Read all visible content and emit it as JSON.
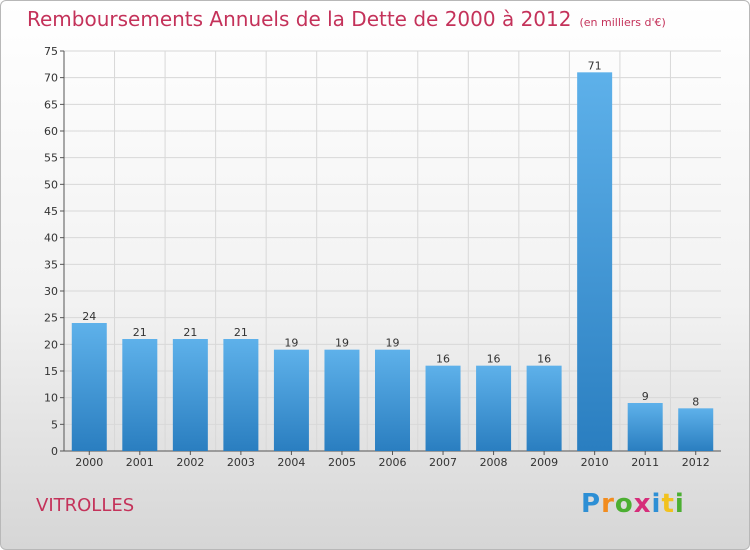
{
  "header": {
    "title": "Remboursements Annuels de la Dette de 2000 à 2012",
    "subtitle": "(en milliers d'€)"
  },
  "footer": {
    "city": "VITROLLES",
    "logo": {
      "letters": [
        "P",
        "r",
        "o",
        "x",
        "i",
        "t",
        "i"
      ],
      "colors": [
        "#2d8fd5",
        "#f28c1e",
        "#4caf32",
        "#d62d7a",
        "#2d8fd5",
        "#f2c21e",
        "#4caf32"
      ]
    }
  },
  "chart_data": {
    "type": "bar",
    "categories": [
      "2000",
      "2001",
      "2002",
      "2003",
      "2004",
      "2005",
      "2006",
      "2007",
      "2008",
      "2009",
      "2010",
      "2011",
      "2012"
    ],
    "values": [
      24,
      21,
      21,
      21,
      19,
      19,
      19,
      16,
      16,
      16,
      71,
      9,
      8
    ],
    "title": "Remboursements Annuels de la Dette de 2000 à 2012",
    "subtitle": "(en milliers d'€)",
    "xlabel": "",
    "ylabel": "",
    "ylim": [
      0,
      75
    ],
    "yticks": [
      0,
      5,
      10,
      15,
      20,
      25,
      30,
      35,
      40,
      45,
      50,
      55,
      60,
      65,
      70,
      75
    ],
    "grid": true,
    "colors": {
      "bar_light": "#5eb1ea",
      "bar_dark": "#2a7ec0",
      "grid": "#d8d8d8"
    }
  }
}
